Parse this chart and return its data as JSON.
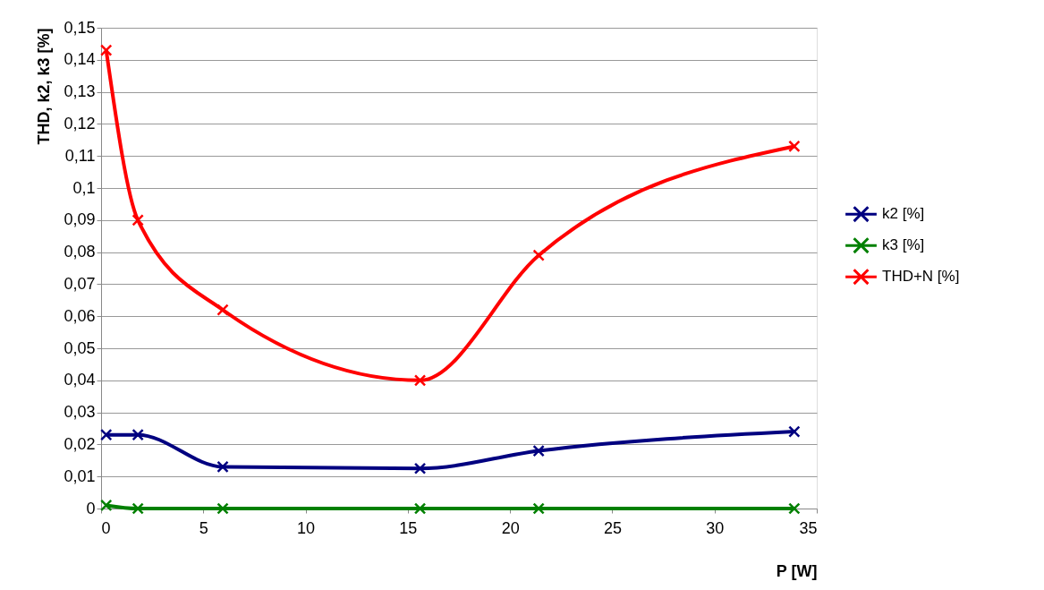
{
  "chart_data": {
    "type": "line",
    "x": [
      0.25,
      1.8,
      5.95,
      15.6,
      21.4,
      33.9
    ],
    "series": [
      {
        "name": "k2 [%]",
        "color": "#000080",
        "values": [
          0.023,
          0.023,
          0.013,
          0.0125,
          0.018,
          0.024
        ]
      },
      {
        "name": "k3 [%]",
        "color": "#008000",
        "values": [
          0.001,
          0,
          0,
          0,
          0,
          0
        ]
      },
      {
        "name": "THD+N [%]",
        "color": "#ff0000",
        "values": [
          0.143,
          0.09,
          0.062,
          0.04,
          0.079,
          0.113
        ]
      }
    ],
    "xlabel": "P [W]",
    "ylabel": "THD, k2, k3 [%]",
    "xlim": [
      0,
      35
    ],
    "xticks": [
      0,
      5,
      10,
      15,
      20,
      25,
      30,
      35
    ],
    "ylim": [
      0,
      0.15
    ],
    "yticks": [
      {
        "value": 0,
        "label": "0"
      },
      {
        "value": 0.01,
        "label": "0,01"
      },
      {
        "value": 0.02,
        "label": "0,02"
      },
      {
        "value": 0.03,
        "label": "0,03"
      },
      {
        "value": 0.04,
        "label": "0,04"
      },
      {
        "value": 0.05,
        "label": "0,05"
      },
      {
        "value": 0.06,
        "label": "0,06"
      },
      {
        "value": 0.07,
        "label": "0,07"
      },
      {
        "value": 0.08,
        "label": "0,08"
      },
      {
        "value": 0.09,
        "label": "0,09"
      },
      {
        "value": 0.1,
        "label": "0,1"
      },
      {
        "value": 0.11,
        "label": "0,11"
      },
      {
        "value": 0.12,
        "label": "0,12"
      },
      {
        "value": 0.13,
        "label": "0,13"
      },
      {
        "value": 0.14,
        "label": "0,14"
      },
      {
        "value": 0.15,
        "label": "0,15"
      }
    ],
    "grid": "y",
    "legend": "right",
    "marker": "cross",
    "line_style": "solid"
  }
}
